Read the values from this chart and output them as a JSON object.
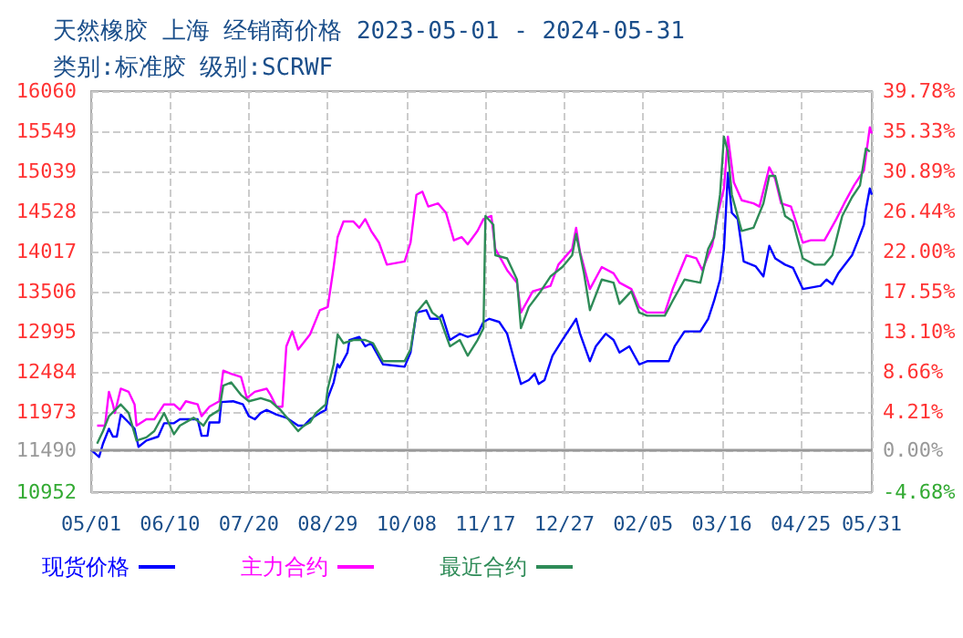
{
  "chart_data": {
    "type": "line",
    "title": "天然橡胶 上海 经销商价格 2023-05-01 - 2024-05-31",
    "subtitle": "类别:标准胶 级别:SCRWF",
    "series": [
      {
        "name": "现货价格",
        "color": "#0000ff",
        "x": [
          "2023-05-01",
          "2023-05-05",
          "2023-05-07",
          "2023-05-10",
          "2023-05-12",
          "2023-05-14",
          "2023-05-16",
          "2023-05-20",
          "2023-05-23",
          "2023-05-25",
          "2023-05-29",
          "2023-06-04",
          "2023-06-07",
          "2023-06-12",
          "2023-06-15",
          "2023-06-24",
          "2023-06-26",
          "2023-06-29",
          "2023-06-30",
          "2023-07-05",
          "2023-07-06",
          "2023-07-12",
          "2023-07-17",
          "2023-07-20",
          "2023-07-23",
          "2023-07-26",
          "2023-07-29",
          "2023-08-03",
          "2023-08-08",
          "2023-08-14",
          "2023-08-17",
          "2023-08-20",
          "2023-08-25",
          "2023-08-28",
          "2023-08-29",
          "2023-09-01",
          "2023-09-03",
          "2023-09-04",
          "2023-09-08",
          "2023-09-09",
          "2023-09-14",
          "2023-09-17",
          "2023-09-20",
          "2023-09-26",
          "2023-10-07",
          "2023-10-10",
          "2023-10-13",
          "2023-10-18",
          "2023-10-20",
          "2023-10-24",
          "2023-10-26",
          "2023-10-30",
          "2023-11-04",
          "2023-11-08",
          "2023-11-13",
          "2023-11-16",
          "2023-11-19",
          "2023-11-24",
          "2023-11-28",
          "2023-12-01",
          "2023-12-05",
          "2023-12-09",
          "2023-12-12",
          "2023-12-14",
          "2023-12-17",
          "2023-12-21",
          "2023-12-26",
          "2023-12-31",
          "2024-01-02",
          "2024-01-04",
          "2024-01-09",
          "2024-01-12",
          "2024-01-17",
          "2024-01-21",
          "2024-01-24",
          "2024-01-29",
          "2024-02-03",
          "2024-02-07",
          "2024-02-18",
          "2024-02-21",
          "2024-02-26",
          "2024-03-05",
          "2024-03-09",
          "2024-03-12",
          "2024-03-15",
          "2024-03-17",
          "2024-03-19",
          "2024-03-21",
          "2024-03-24",
          "2024-03-27",
          "2024-04-02",
          "2024-04-06",
          "2024-04-09",
          "2024-04-12",
          "2024-04-17",
          "2024-04-21",
          "2024-04-26",
          "2024-05-05",
          "2024-05-08",
          "2024-05-11",
          "2024-05-14",
          "2024-05-21",
          "2024-05-24",
          "2024-05-27",
          "2024-05-28",
          "2024-05-30",
          "2024-05-31"
        ],
        "values": [
          11490,
          11400,
          11570,
          11760,
          11660,
          11660,
          11940,
          11840,
          11760,
          11530,
          11610,
          11660,
          11830,
          11830,
          11880,
          11880,
          11670,
          11670,
          11840,
          11840,
          12100,
          12110,
          12070,
          11920,
          11880,
          11960,
          12000,
          11940,
          11900,
          11800,
          11800,
          11880,
          11960,
          12000,
          12150,
          12350,
          12580,
          12540,
          12730,
          12890,
          12930,
          12810,
          12850,
          12580,
          12550,
          12730,
          13240,
          13270,
          13160,
          13160,
          13210,
          12890,
          12970,
          12930,
          12970,
          13120,
          13160,
          13120,
          12970,
          12690,
          12330,
          12380,
          12460,
          12330,
          12380,
          12690,
          12890,
          13080,
          13160,
          12970,
          12620,
          12810,
          12970,
          12890,
          12730,
          12810,
          12580,
          12620,
          12620,
          12810,
          13000,
          13000,
          13160,
          13390,
          13660,
          14050,
          15020,
          14510,
          14430,
          13890,
          13830,
          13700,
          14090,
          13930,
          13850,
          13810,
          13540,
          13580,
          13660,
          13600,
          13740,
          13970,
          14160,
          14360,
          14550,
          14820,
          14740
        ]
      },
      {
        "name": "主力合约",
        "color": "#ff00ff",
        "x": [
          "2023-05-04",
          "2023-05-08",
          "2023-05-10",
          "2023-05-12",
          "2023-05-13",
          "2023-05-16",
          "2023-05-20",
          "2023-05-23",
          "2023-05-24",
          "2023-05-29",
          "2023-06-02",
          "2023-06-07",
          "2023-06-12",
          "2023-06-15",
          "2023-06-18",
          "2023-06-24",
          "2023-06-26",
          "2023-06-30",
          "2023-07-05",
          "2023-07-07",
          "2023-07-11",
          "2023-07-16",
          "2023-07-19",
          "2023-07-23",
          "2023-07-29",
          "2023-07-31",
          "2023-08-03",
          "2023-08-06",
          "2023-08-08",
          "2023-08-11",
          "2023-08-14",
          "2023-08-20",
          "2023-08-25",
          "2023-08-29",
          "2023-09-01",
          "2023-09-03",
          "2023-09-06",
          "2023-09-11",
          "2023-09-14",
          "2023-09-17",
          "2023-09-20",
          "2023-09-24",
          "2023-09-28",
          "2023-10-07",
          "2023-10-10",
          "2023-10-13",
          "2023-10-16",
          "2023-10-19",
          "2023-10-24",
          "2023-10-28",
          "2023-11-01",
          "2023-11-05",
          "2023-11-08",
          "2023-11-13",
          "2023-11-16",
          "2023-11-20",
          "2023-11-22",
          "2023-11-28",
          "2023-12-03",
          "2023-12-05",
          "2023-12-11",
          "2023-12-15",
          "2023-12-20",
          "2023-12-24",
          "2023-12-31",
          "2024-01-02",
          "2024-01-04",
          "2024-01-09",
          "2024-01-15",
          "2024-01-21",
          "2024-01-24",
          "2024-01-30",
          "2024-02-03",
          "2024-02-07",
          "2024-02-16",
          "2024-02-20",
          "2024-02-27",
          "2024-03-03",
          "2024-03-06",
          "2024-03-11",
          "2024-03-14",
          "2024-03-17",
          "2024-03-19",
          "2024-03-22",
          "2024-03-26",
          "2024-04-01",
          "2024-04-04",
          "2024-04-09",
          "2024-04-12",
          "2024-04-15",
          "2024-04-20",
          "2024-04-26",
          "2024-04-30",
          "2024-05-07",
          "2024-05-13",
          "2024-05-17",
          "2024-05-22",
          "2024-05-27",
          "2024-05-30",
          "2024-05-31"
        ],
        "values": [
          11800,
          11800,
          12230,
          12070,
          11960,
          12270,
          12230,
          12070,
          11800,
          11880,
          11880,
          12070,
          12070,
          12000,
          12110,
          12070,
          11920,
          12040,
          12110,
          12500,
          12460,
          12420,
          12150,
          12230,
          12270,
          12190,
          12040,
          12040,
          12810,
          13000,
          12770,
          12960,
          13270,
          13310,
          13820,
          14200,
          14400,
          14400,
          14320,
          14430,
          14280,
          14130,
          13850,
          13890,
          14130,
          14740,
          14780,
          14590,
          14630,
          14510,
          14160,
          14200,
          14110,
          14280,
          14430,
          14470,
          14050,
          13780,
          13620,
          13240,
          13510,
          13540,
          13580,
          13850,
          14050,
          14320,
          14010,
          13540,
          13820,
          13740,
          13620,
          13540,
          13310,
          13240,
          13240,
          13540,
          13970,
          13930,
          13780,
          14090,
          14510,
          14820,
          15480,
          14900,
          14670,
          14630,
          14590,
          15090,
          14940,
          14630,
          14590,
          14130,
          14160,
          14160,
          14430,
          14630,
          14860,
          15050,
          15600,
          15520
        ]
      },
      {
        "name": "最近合约",
        "color": "#2e8b57",
        "x": [
          "2023-05-04",
          "2023-05-07",
          "2023-05-10",
          "2023-05-16",
          "2023-05-20",
          "2023-05-24",
          "2023-05-29",
          "2023-06-02",
          "2023-06-07",
          "2023-06-12",
          "2023-06-15",
          "2023-06-22",
          "2023-06-27",
          "2023-06-30",
          "2023-07-05",
          "2023-07-07",
          "2023-07-11",
          "2023-07-16",
          "2023-07-20",
          "2023-07-26",
          "2023-07-31",
          "2023-08-05",
          "2023-08-09",
          "2023-08-14",
          "2023-08-17",
          "2023-08-20",
          "2023-08-23",
          "2023-08-28",
          "2023-08-29",
          "2023-09-01",
          "2023-09-03",
          "2023-09-06",
          "2023-09-11",
          "2023-09-17",
          "2023-09-21",
          "2023-09-26",
          "2023-10-07",
          "2023-10-10",
          "2023-10-13",
          "2023-10-18",
          "2023-10-21",
          "2023-10-25",
          "2023-10-30",
          "2023-11-04",
          "2023-11-08",
          "2023-11-13",
          "2023-11-16",
          "2023-11-17",
          "2023-11-21",
          "2023-11-22",
          "2023-11-28",
          "2023-12-03",
          "2023-12-05",
          "2023-12-09",
          "2023-12-15",
          "2023-12-20",
          "2023-12-26",
          "2023-12-31",
          "2024-01-02",
          "2024-01-06",
          "2024-01-09",
          "2024-01-15",
          "2024-01-21",
          "2024-01-24",
          "2024-01-30",
          "2024-02-03",
          "2024-02-07",
          "2024-02-16",
          "2024-02-20",
          "2024-02-26",
          "2024-03-05",
          "2024-03-09",
          "2024-03-12",
          "2024-03-15",
          "2024-03-17",
          "2024-03-19",
          "2024-03-21",
          "2024-03-26",
          "2024-04-01",
          "2024-04-06",
          "2024-04-09",
          "2024-04-12",
          "2024-04-17",
          "2024-04-21",
          "2024-04-26",
          "2024-05-02",
          "2024-05-07",
          "2024-05-11",
          "2024-05-16",
          "2024-05-21",
          "2024-05-25",
          "2024-05-28",
          "2024-05-30"
        ],
        "values": [
          11570,
          11730,
          11920,
          12070,
          11960,
          11610,
          11650,
          11730,
          11960,
          11690,
          11800,
          11900,
          11800,
          11920,
          12000,
          12310,
          12350,
          12190,
          12110,
          12150,
          12110,
          12000,
          11880,
          11730,
          11800,
          11840,
          11960,
          12070,
          12270,
          12580,
          12960,
          12850,
          12890,
          12890,
          12850,
          12620,
          12620,
          12770,
          13240,
          13390,
          13240,
          13160,
          12810,
          12890,
          12690,
          12890,
          13040,
          14470,
          14360,
          13970,
          13930,
          13660,
          13040,
          13310,
          13510,
          13700,
          13820,
          13970,
          14240,
          13740,
          13270,
          13660,
          13620,
          13350,
          13510,
          13240,
          13200,
          13200,
          13390,
          13660,
          13620,
          14050,
          14200,
          14740,
          15480,
          15290,
          14740,
          14280,
          14320,
          14630,
          14980,
          14980,
          14470,
          14400,
          13930,
          13850,
          13850,
          13970,
          14470,
          14710,
          14860,
          15330,
          15290
        ]
      }
    ],
    "xlim": [
      "2023-05-01",
      "2024-05-31"
    ],
    "xticks": [
      {
        "value": "2023-05-01",
        "label": "05/01"
      },
      {
        "value": "2023-06-10",
        "label": "06/10"
      },
      {
        "value": "2023-07-20",
        "label": "07/20"
      },
      {
        "value": "2023-08-29",
        "label": "08/29"
      },
      {
        "value": "2023-10-08",
        "label": "10/08"
      },
      {
        "value": "2023-11-17",
        "label": "11/17"
      },
      {
        "value": "2023-12-27",
        "label": "12/27"
      },
      {
        "value": "2024-02-05",
        "label": "02/05"
      },
      {
        "value": "2024-03-16",
        "label": "03/16"
      },
      {
        "value": "2024-04-25",
        "label": "04/25"
      },
      {
        "value": "2024-05-31",
        "label": "05/31"
      }
    ],
    "ylim": [
      10952,
      16060
    ],
    "yticks": [
      10952,
      11490,
      11973,
      12484,
      12995,
      13506,
      14017,
      14528,
      15039,
      15549,
      16060
    ],
    "y2lim": [
      -4.68,
      39.78
    ],
    "y2ticks": [
      {
        "value": -4.68,
        "label": "-4.68%"
      },
      {
        "value": 0,
        "label": "0.00%"
      },
      {
        "value": 4.21,
        "label": "4.21%"
      },
      {
        "value": 8.66,
        "label": "8.66%"
      },
      {
        "value": 13.1,
        "label": "13.10%"
      },
      {
        "value": 17.55,
        "label": "17.55%"
      },
      {
        "value": 22.0,
        "label": "22.00%"
      },
      {
        "value": 26.44,
        "label": "26.44%"
      },
      {
        "value": 30.89,
        "label": "30.89%"
      },
      {
        "value": 35.33,
        "label": "35.33%"
      },
      {
        "value": 39.78,
        "label": "39.78%"
      }
    ],
    "ref_lines": [
      {
        "axis": "y2",
        "value": 0,
        "color": "#999999",
        "line_style": "solid"
      }
    ],
    "grid": true,
    "legend": "bottom",
    "marker": "none",
    "line_style": "solid"
  }
}
